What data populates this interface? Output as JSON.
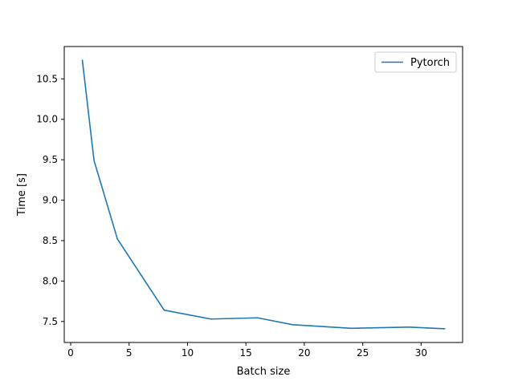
{
  "chart_data": {
    "type": "line",
    "title": "",
    "xlabel": "Batch size",
    "ylabel": "Time [s]",
    "xlim": [
      -0.55,
      33.55
    ],
    "ylim": [
      7.24,
      10.9
    ],
    "xticks": [
      0,
      5,
      10,
      15,
      20,
      25,
      30
    ],
    "xtick_labels": [
      "0",
      "5",
      "10",
      "15",
      "20",
      "25",
      "30"
    ],
    "yticks": [
      7.5,
      8.0,
      8.5,
      9.0,
      9.5,
      10.0,
      10.5
    ],
    "ytick_labels": [
      "7.5",
      "8.0",
      "8.5",
      "9.0",
      "9.5",
      "10.0",
      "10.5"
    ],
    "grid": false,
    "legend_position": "top-right",
    "series": [
      {
        "name": "Pytorch",
        "color": "#1f77b4",
        "x": [
          1,
          2,
          4,
          8,
          12,
          16,
          19,
          24,
          29,
          32
        ],
        "y": [
          10.73,
          9.49,
          8.52,
          7.64,
          7.53,
          7.545,
          7.46,
          7.415,
          7.43,
          7.41
        ]
      }
    ]
  }
}
